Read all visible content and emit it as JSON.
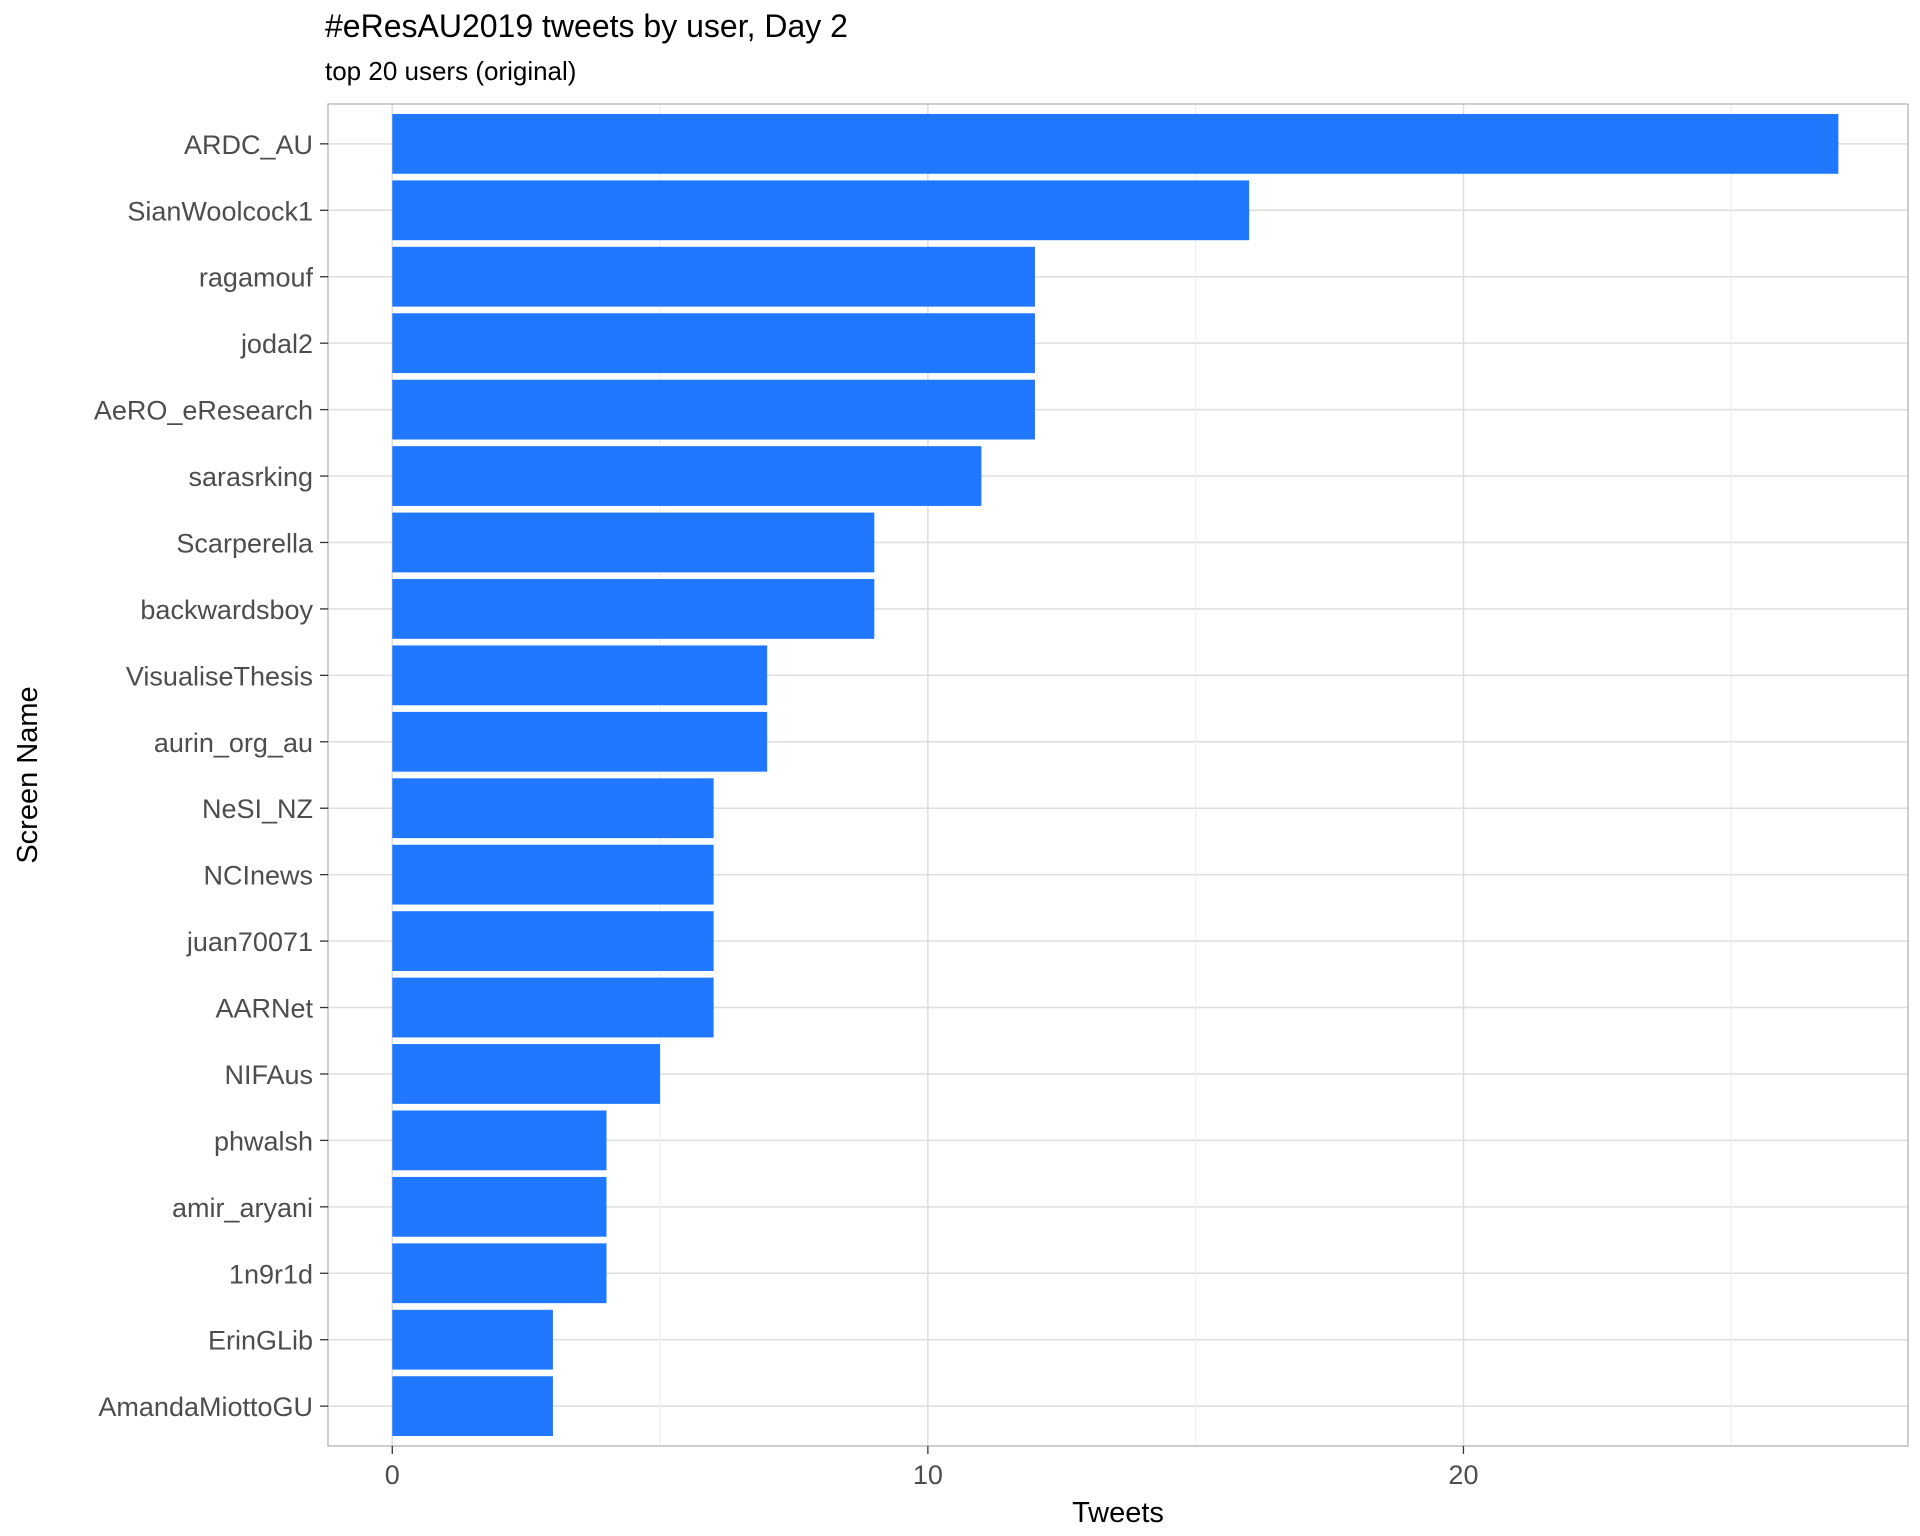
{
  "chart_data": {
    "type": "bar",
    "orientation": "horizontal",
    "title": "#eResAU2019 tweets by user, Day 2",
    "subtitle": "top 20 users (original)",
    "xlabel": "Tweets",
    "ylabel": "Screen Name",
    "xlim": [
      -1.2,
      28.3
    ],
    "xticks": [
      0,
      10,
      20
    ],
    "grid": true,
    "bar_color": "#1f78ff",
    "categories": [
      "ARDC_AU",
      "SianWoolcock1",
      "ragamouf",
      "jodal2",
      "AeRO_eResearch",
      "sarasrking",
      "Scarperella",
      "backwardsboy",
      "VisualiseThesis",
      "aurin_org_au",
      "NeSI_NZ",
      "NCInews",
      "juan70071",
      "AARNet",
      "NIFAus",
      "phwalsh",
      "amir_aryani",
      "1n9r1d",
      "ErinGLib",
      "AmandaMiottoGU"
    ],
    "values": [
      27,
      16,
      12,
      12,
      12,
      11,
      9,
      9,
      7,
      7,
      6,
      6,
      6,
      6,
      5,
      4,
      4,
      4,
      3,
      3
    ]
  }
}
